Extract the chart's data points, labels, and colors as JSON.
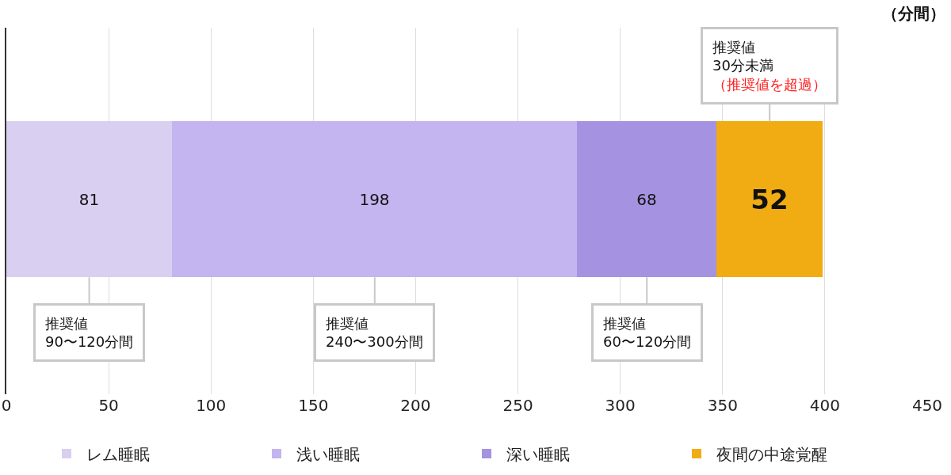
{
  "chart_data": {
    "type": "bar",
    "orientation": "horizontal",
    "stacked": true,
    "categories": [
      null
    ],
    "series": [
      {
        "name": "レム睡眠",
        "color": "#d9cff0",
        "values": [
          81
        ]
      },
      {
        "name": "浅い睡眠",
        "color": "#c4b4f0",
        "values": [
          198
        ]
      },
      {
        "name": "深い睡眠",
        "color": "#a593e2",
        "values": [
          68
        ]
      },
      {
        "name": "夜間の中途覚醒",
        "color": "#f0ac12",
        "values": [
          52
        ]
      }
    ],
    "xlabel": "（分間）",
    "xlim": [
      0,
      450
    ],
    "xticks": [
      0,
      50,
      100,
      150,
      200,
      250,
      300,
      350,
      400,
      450
    ],
    "grid": "x",
    "legend": "bottom",
    "data_labels": true,
    "annotations": [
      "推奨値\n90〜120分間",
      "推奨値\n240〜300分間",
      "推奨値\n60〜120分間",
      "推奨値\n30分未満",
      "（推奨値を超過）"
    ]
  }
}
